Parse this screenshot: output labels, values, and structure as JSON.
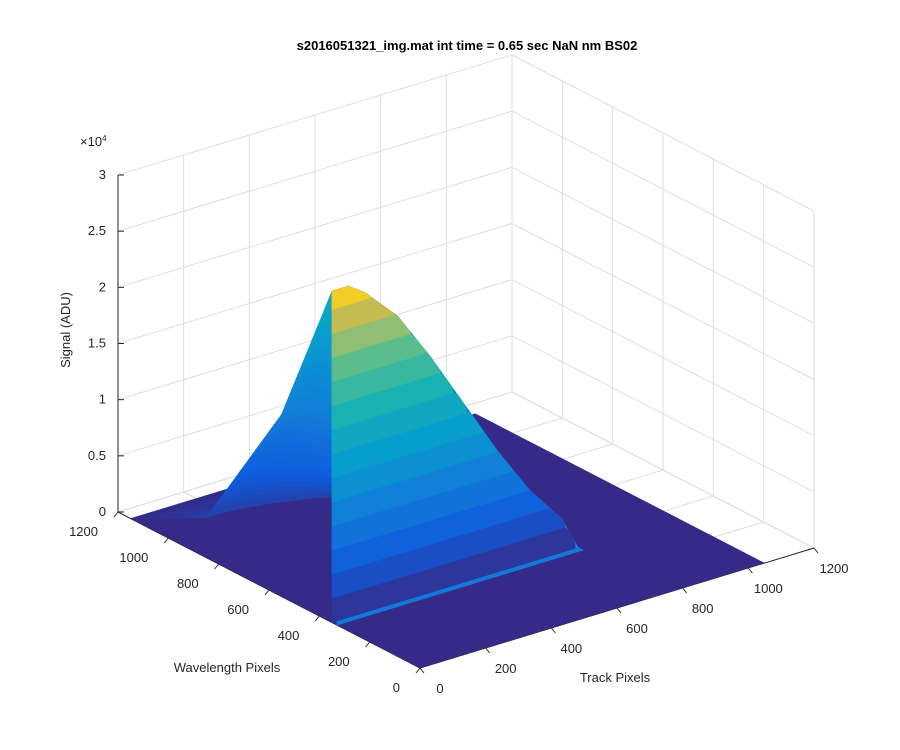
{
  "chart_data": {
    "type": "surface",
    "title": "s2016051321_img.mat int time = 0.65 sec  NaN nm BS02",
    "xlabel": "Track Pixels",
    "ylabel": "Wavelength Pixels",
    "zlabel": "Signal (ADU)",
    "z_exponent_label": "×10",
    "z_exponent_power": "4",
    "xlim": [
      0,
      1200
    ],
    "ylim": [
      0,
      1200
    ],
    "zlim": [
      0,
      30000
    ],
    "x_ticks": [
      "0",
      "200",
      "400",
      "600",
      "800",
      "1000",
      "1200"
    ],
    "y_ticks": [
      "0",
      "200",
      "400",
      "600",
      "800",
      "1000",
      "1200"
    ],
    "z_ticks": [
      "0",
      "0.5",
      "1",
      "1.5",
      "2",
      "2.5",
      "3"
    ],
    "x_tick_values": [
      0,
      200,
      400,
      600,
      800,
      1000,
      1200
    ],
    "y_tick_values": [
      0,
      200,
      400,
      600,
      800,
      1000,
      1200
    ],
    "z_tick_values": [
      0,
      5000,
      10000,
      15000,
      20000,
      25000,
      30000
    ],
    "grid": true,
    "colormap": "parula",
    "background_level": 0,
    "track_extent": [
      0,
      1050
    ],
    "wavelength_extent": [
      0,
      1150
    ],
    "peak": {
      "x_track": 50,
      "y_wavelength": 350,
      "z": 29500,
      "profile_along_track": [
        {
          "x": 50,
          "z": 29500
        },
        {
          "x": 100,
          "z": 28500
        },
        {
          "x": 200,
          "z": 25500
        },
        {
          "x": 300,
          "z": 21000
        },
        {
          "x": 400,
          "z": 16000
        },
        {
          "x": 500,
          "z": 11000
        },
        {
          "x": 600,
          "z": 6500
        },
        {
          "x": 700,
          "z": 3000
        },
        {
          "x": 750,
          "z": 0
        }
      ],
      "falloff_along_wavelength": [
        {
          "y": 0,
          "z_fraction": 0.0
        },
        {
          "y": 330,
          "z_fraction": 0.0
        },
        {
          "y": 350,
          "z_fraction": 1.0
        },
        {
          "y": 550,
          "z_fraction": 0.55
        },
        {
          "y": 850,
          "z_fraction": 0.12
        },
        {
          "y": 1150,
          "z_fraction": 0.0
        }
      ]
    }
  }
}
